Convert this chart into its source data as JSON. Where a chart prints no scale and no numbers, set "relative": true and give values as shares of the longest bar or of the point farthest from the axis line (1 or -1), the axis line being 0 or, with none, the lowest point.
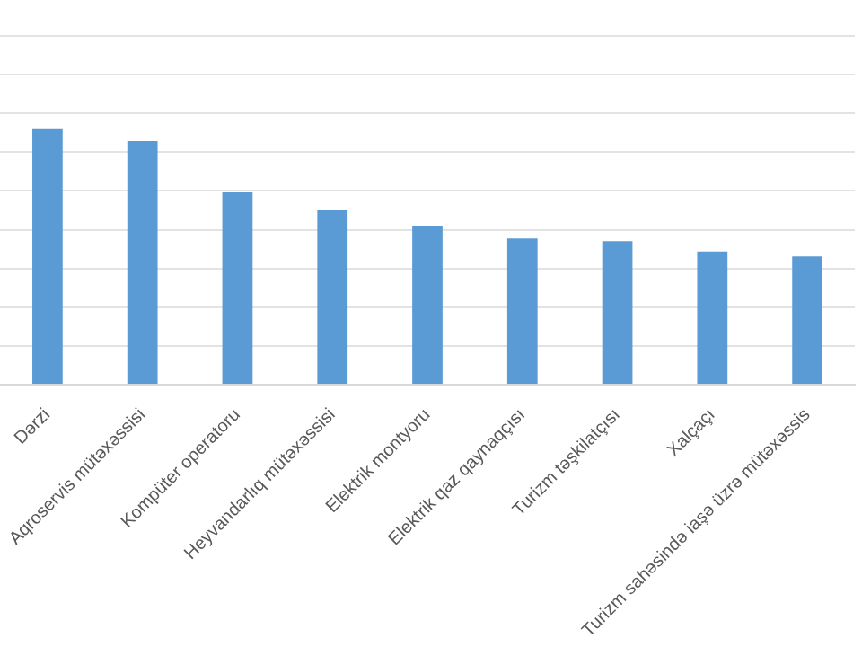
{
  "chart_data": {
    "type": "bar",
    "relative": true,
    "grid": "y",
    "legend": false,
    "color": "#5b9bd5",
    "categories": [
      "Dərzi",
      "Aqroservis mütəxəssisi",
      "Kompüter operatoru",
      "Heyvandarlıq mütəxəssisi",
      "Elektrik montyoru",
      "Elektrik qaz qaynaqçısı",
      "Turizm təşkilatçısı",
      "Xalçaçı",
      "Turizm sahəsində iaşə üzrə mütəxəssis"
    ],
    "values": [
      1,
      0.95,
      0.75,
      0.68,
      0.62,
      0.57,
      0.56,
      0.52,
      0.5
    ]
  }
}
